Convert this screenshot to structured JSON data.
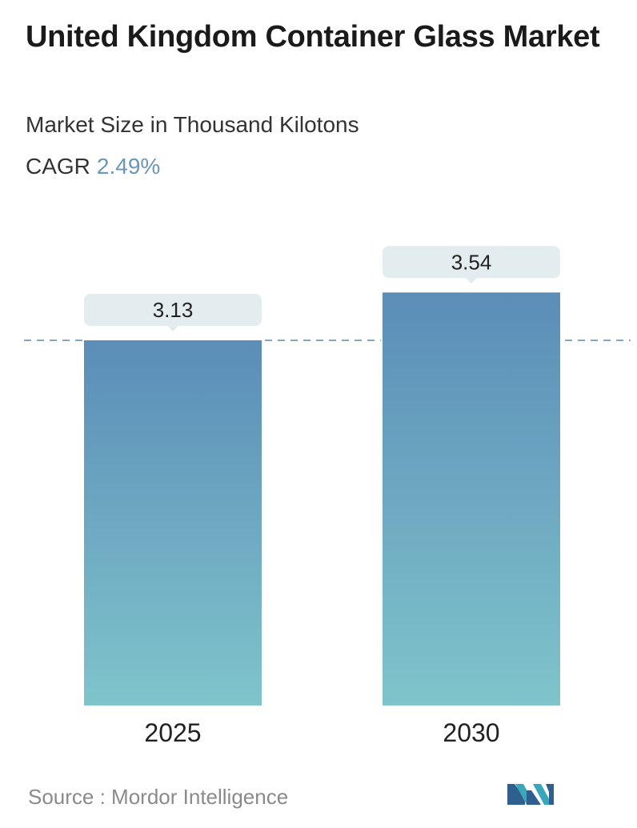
{
  "header": {
    "title": "United Kingdom Container Glass Market",
    "subtitle": "Market Size in Thousand Kilotons",
    "cagr_label": "CAGR",
    "cagr_value": "2.49%"
  },
  "chart_data": {
    "type": "bar",
    "categories": [
      "2025",
      "2030"
    ],
    "values": [
      3.13,
      3.54
    ],
    "value_labels": [
      "3.13",
      "3.54"
    ],
    "title": "United Kingdom Container Glass Market",
    "subtitle": "Market Size in Thousand Kilotons",
    "xlabel": "",
    "ylabel": "",
    "grid": false,
    "reference_line": "dashed line at the 2025 value",
    "colors": {
      "bar_top": "#5b8db8",
      "bar_bottom": "#7fc4cb",
      "label_bg": "#e3ecef",
      "reference_line": "#5d87a8",
      "cagr_value": "#6b96b8"
    }
  },
  "footer": {
    "source": "Source :  Mordor Intelligence",
    "logo": "mordor-intelligence-logo"
  }
}
